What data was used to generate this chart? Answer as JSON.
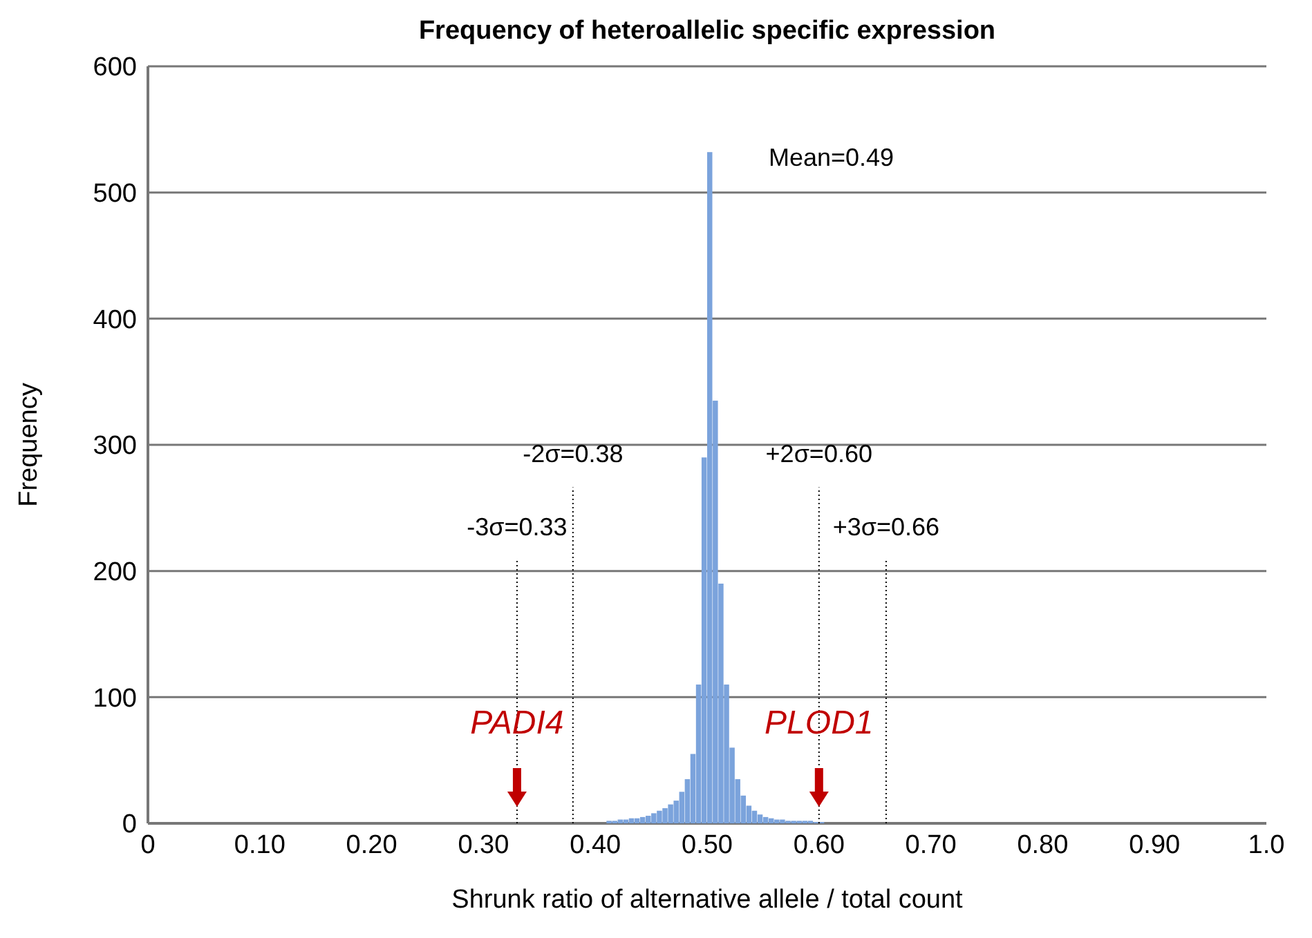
{
  "chart_data": {
    "type": "histogram",
    "title": "Frequency of heteroallelic specific expression",
    "xlabel": "Shrunk ratio of alternative allele / total count",
    "ylabel": "Frequency",
    "bins": [
      0.41,
      0.415,
      0.42,
      0.425,
      0.43,
      0.435,
      0.44,
      0.445,
      0.45,
      0.455,
      0.46,
      0.465,
      0.47,
      0.475,
      0.48,
      0.485,
      0.49,
      0.495,
      0.5,
      0.505,
      0.51,
      0.515,
      0.52,
      0.525,
      0.53,
      0.535,
      0.54,
      0.545,
      0.55,
      0.555,
      0.56,
      0.565,
      0.57,
      0.575,
      0.58,
      0.585,
      0.59,
      0.595,
      0.6,
      0.605
    ],
    "values": [
      2,
      2,
      3,
      3,
      4,
      4,
      5,
      6,
      8,
      10,
      12,
      15,
      18,
      25,
      35,
      55,
      110,
      290,
      532,
      335,
      190,
      110,
      60,
      35,
      22,
      14,
      10,
      7,
      5,
      4,
      3,
      3,
      2,
      2,
      2,
      2,
      2,
      1,
      1
    ],
    "color": "#7ba3dc",
    "xlim": [
      0,
      1.0
    ],
    "xticks": [
      0,
      {
        "value": 0.1,
        "label": "0.10"
      },
      {
        "value": 0.2,
        "label": "0.20"
      },
      {
        "value": 0.3,
        "label": "0.30"
      },
      {
        "value": 0.4,
        "label": "0.40"
      },
      {
        "value": 0.5,
        "label": "0.50"
      },
      {
        "value": 0.6,
        "label": "0.60"
      },
      {
        "value": 0.7,
        "label": "0.70"
      },
      {
        "value": 0.8,
        "label": "0.80"
      },
      {
        "value": 0.9,
        "label": "0.90"
      },
      {
        "value": 1.0,
        "label": "1.0"
      }
    ],
    "ylim": [
      0,
      600
    ],
    "yticks": [
      0,
      100,
      200,
      300,
      400,
      500,
      600
    ],
    "grid": "y",
    "ref_lines": [
      {
        "axis": "x",
        "value": 0.33,
        "label": "-3σ=0.33",
        "line_style": "dotted",
        "color": "#000000"
      },
      {
        "axis": "x",
        "value": 0.38,
        "label": "-2σ=0.38",
        "line_style": "dotted",
        "color": "#000000"
      },
      {
        "axis": "x",
        "value": 0.6,
        "label": "+2σ=0.60",
        "line_style": "dotted",
        "color": "#000000"
      },
      {
        "axis": "x",
        "value": 0.66,
        "label": "+3σ=0.66",
        "line_style": "dotted",
        "color": "#000000"
      }
    ],
    "annotations": [
      "Mean=0.49",
      {
        "text": "PADI4",
        "x": 0.33,
        "y": 0
      },
      {
        "text": "PLOD1",
        "x": 0.6,
        "y": 0
      }
    ]
  }
}
